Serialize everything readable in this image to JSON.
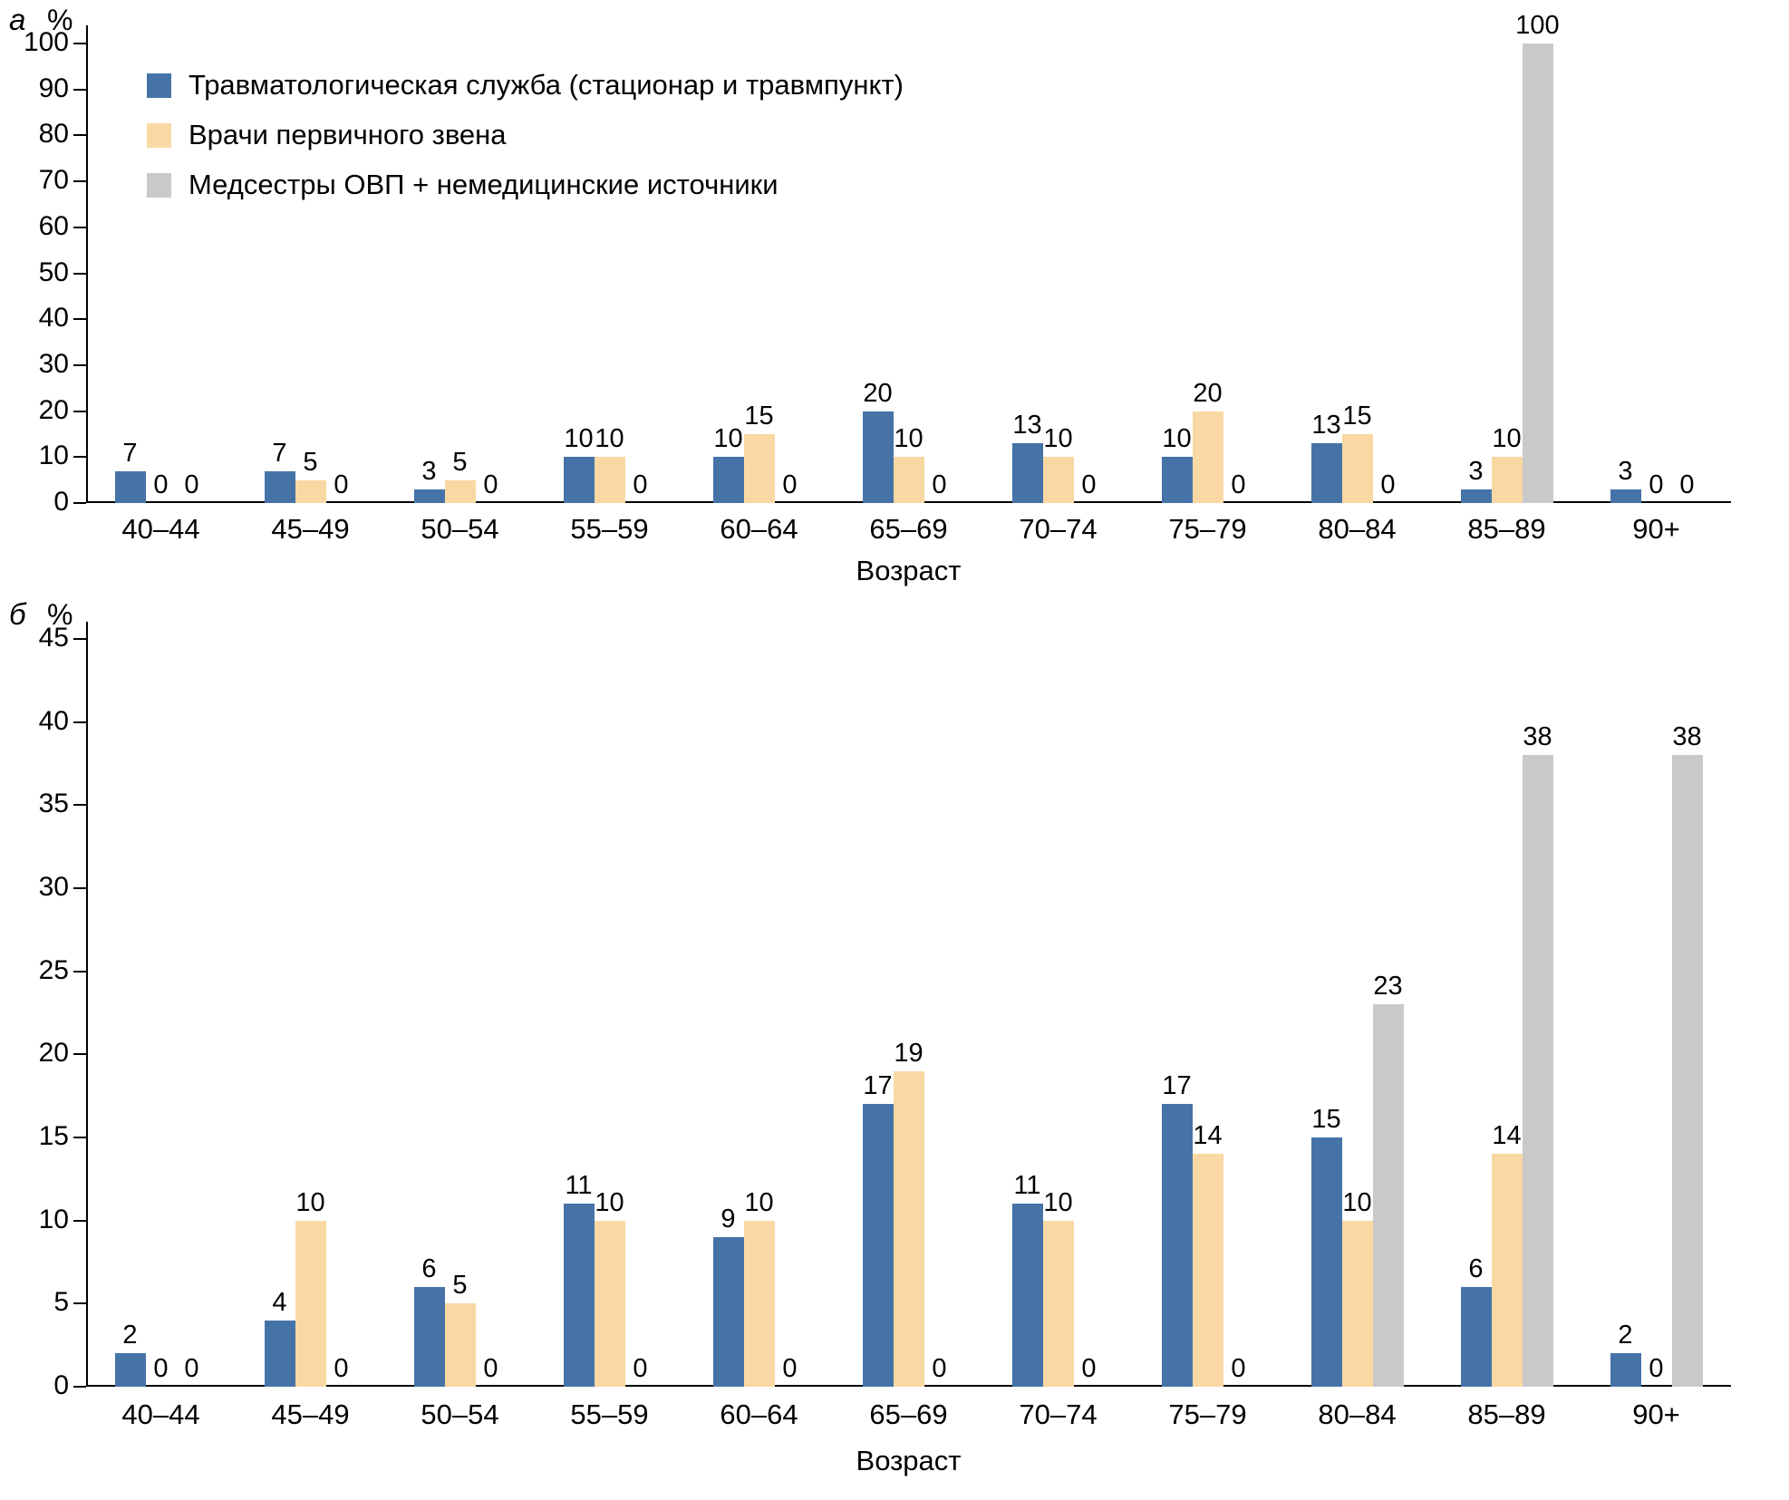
{
  "figure": {
    "background": "#ffffff"
  },
  "chart_data": [
    {
      "type": "bar",
      "panel_label": "а",
      "y_unit": "%",
      "xlabel": "Возраст",
      "ylim": [
        0,
        100
      ],
      "yticks": [
        0,
        10,
        20,
        30,
        40,
        50,
        60,
        70,
        80,
        90,
        100
      ],
      "categories": [
        "40–44",
        "45–49",
        "50–54",
        "55–59",
        "60–64",
        "65–69",
        "70–74",
        "75–79",
        "80–84",
        "85–89",
        "90+"
      ],
      "legend_position": "top-left",
      "show_legend": true,
      "grid": false,
      "series": [
        {
          "name": "Травматологическая служба (стационар и травмпункт)",
          "color": "#4573A8",
          "values": [
            7,
            7,
            3,
            10,
            10,
            20,
            13,
            10,
            13,
            3,
            3
          ]
        },
        {
          "name": "Врачи первичного звена",
          "color": "#FAD8A4",
          "values": [
            0,
            5,
            5,
            10,
            15,
            10,
            10,
            20,
            15,
            10,
            0
          ]
        },
        {
          "name": "Медсестры ОВП + немедицинские источники",
          "color": "#C9C9C9",
          "values": [
            0,
            0,
            0,
            0,
            0,
            0,
            0,
            0,
            0,
            100,
            0
          ]
        }
      ]
    },
    {
      "type": "bar",
      "panel_label": "б",
      "y_unit": "%",
      "xlabel": "Возраст",
      "ylim": [
        0,
        45
      ],
      "yticks": [
        0,
        5,
        10,
        15,
        20,
        25,
        30,
        35,
        40,
        45
      ],
      "categories": [
        "40–44",
        "45–49",
        "50–54",
        "55–59",
        "60–64",
        "65–69",
        "70–74",
        "75–79",
        "80–84",
        "85–89",
        "90+"
      ],
      "show_legend": false,
      "grid": false,
      "series": [
        {
          "name": "Травматологическая служба (стационар и травмпункт)",
          "color": "#4573A8",
          "values": [
            2,
            4,
            6,
            11,
            9,
            17,
            11,
            17,
            15,
            6,
            2
          ]
        },
        {
          "name": "Врачи первичного звена",
          "color": "#FAD8A4",
          "values": [
            0,
            10,
            5,
            10,
            10,
            19,
            10,
            14,
            10,
            14,
            0
          ]
        },
        {
          "name": "Медсестры ОВП + немедицинские источники",
          "color": "#C9C9C9",
          "values": [
            0,
            0,
            0,
            0,
            0,
            0,
            0,
            0,
            23,
            38,
            38
          ]
        }
      ]
    }
  ]
}
